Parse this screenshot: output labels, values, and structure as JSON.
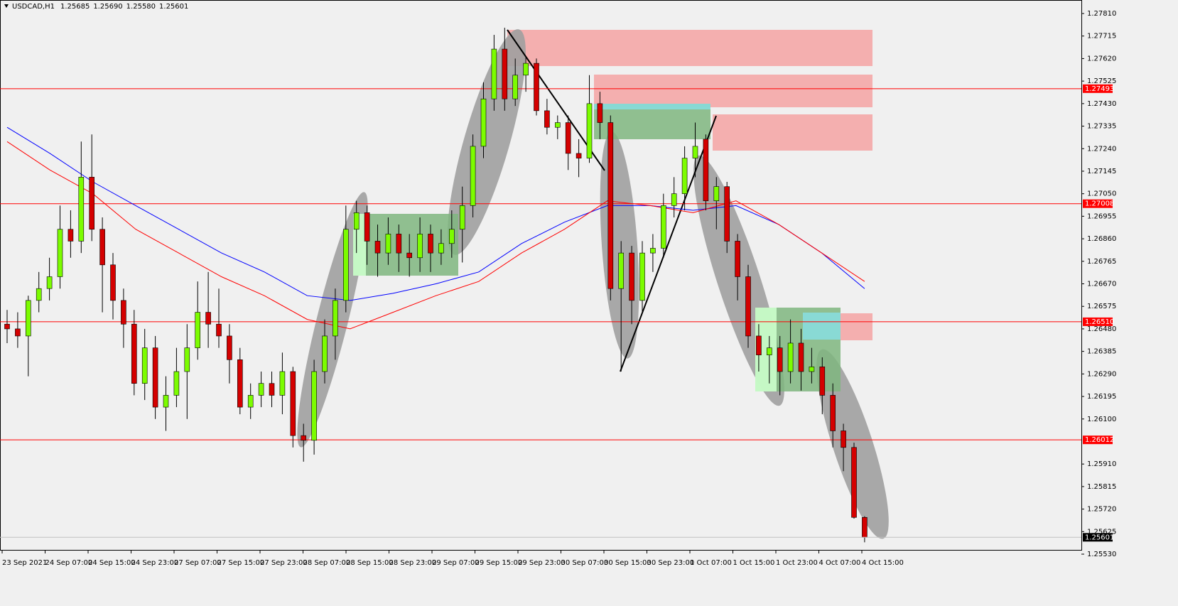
{
  "chart_data": {
    "type": "candlestick",
    "title": "USDCAD,H1",
    "quote": [
      {
        "value": 1.25685,
        "label": "1.25685"
      },
      {
        "value": 1.2569,
        "label": "1.25690"
      },
      {
        "value": 1.2558,
        "label": "1.25580"
      },
      {
        "value": 1.25601,
        "label": "1.25601"
      }
    ],
    "up_color": "#7cfc00",
    "down_color": "#d40000",
    "ylim": [
      1.25545,
      1.27858
    ],
    "yticks": [
      {
        "value": 1.2781,
        "label": "1.27810"
      },
      {
        "value": 1.27715,
        "label": "1.27715"
      },
      {
        "value": 1.2762,
        "label": "1.27620"
      },
      {
        "value": 1.27525,
        "label": "1.27525"
      },
      {
        "value": 1.2743,
        "label": "1.27430"
      },
      {
        "value": 1.27335,
        "label": "1.27335"
      },
      {
        "value": 1.2724,
        "label": "1.27240"
      },
      {
        "value": 1.27145,
        "label": "1.27145"
      },
      {
        "value": 1.2705,
        "label": "1.27050"
      },
      {
        "value": 1.26955,
        "label": "1.26955"
      },
      {
        "value": 1.2686,
        "label": "1.26860"
      },
      {
        "value": 1.26765,
        "label": "1.26765"
      },
      {
        "value": 1.2667,
        "label": "1.26670"
      },
      {
        "value": 1.26575,
        "label": "1.26575"
      },
      {
        "value": 1.2648,
        "label": "1.26480"
      },
      {
        "value": 1.26385,
        "label": "1.26385"
      },
      {
        "value": 1.2629,
        "label": "1.26290"
      },
      {
        "value": 1.26195,
        "label": "1.26195"
      },
      {
        "value": 1.261,
        "label": "1.26100"
      },
      {
        "value": 1.2591,
        "label": "1.25910"
      },
      {
        "value": 1.25815,
        "label": "1.25815"
      },
      {
        "value": 1.2572,
        "label": "1.25720"
      },
      {
        "value": 1.25625,
        "label": "1.25625"
      },
      {
        "value": 1.2553,
        "label": "1.25530"
      }
    ],
    "hlines": [
      {
        "value": 1.27493,
        "label": "1.27493"
      },
      {
        "value": 1.27008,
        "label": "1.27008"
      },
      {
        "value": 1.2651,
        "label": "1.26510"
      },
      {
        "value": 1.26012,
        "label": "1.26012"
      }
    ],
    "hline_color": "#ff0000",
    "time_labels": [
      "23 Sep 2021",
      "24 Sep 07:00",
      "24 Sep 15:00",
      "24 Sep 23:00",
      "27 Sep 07:00",
      "27 Sep 15:00",
      "27 Sep 23:00",
      "28 Sep 07:00",
      "28 Sep 15:00",
      "28 Sep 23:00",
      "29 Sep 07:00",
      "29 Sep 15:00",
      "29 Sep 23:00",
      "30 Sep 07:00",
      "30 Sep 15:00",
      "30 Sep 23:00",
      "1 Oct 07:00",
      "1 Oct 15:00",
      "1 Oct 23:00",
      "4 Oct 07:00",
      "4 Oct 15:00"
    ],
    "candles": [
      [
        1.265,
        1.2656,
        1.2642,
        1.2648
      ],
      [
        1.2648,
        1.2655,
        1.264,
        1.2645
      ],
      [
        1.2645,
        1.2662,
        1.2628,
        1.266
      ],
      [
        1.266,
        1.2672,
        1.2655,
        1.2665
      ],
      [
        1.2665,
        1.2678,
        1.266,
        1.267
      ],
      [
        1.267,
        1.27,
        1.2665,
        1.269
      ],
      [
        1.269,
        1.2698,
        1.2678,
        1.2685
      ],
      [
        1.2685,
        1.2727,
        1.268,
        1.2712
      ],
      [
        1.2712,
        1.273,
        1.2685,
        1.269
      ],
      [
        1.269,
        1.2695,
        1.2655,
        1.2675
      ],
      [
        1.2675,
        1.268,
        1.2652,
        1.266
      ],
      [
        1.266,
        1.2665,
        1.264,
        1.265
      ],
      [
        1.265,
        1.2656,
        1.262,
        1.2625
      ],
      [
        1.2625,
        1.2648,
        1.2618,
        1.264
      ],
      [
        1.264,
        1.2645,
        1.261,
        1.2615
      ],
      [
        1.2615,
        1.2628,
        1.2605,
        1.262
      ],
      [
        1.262,
        1.264,
        1.2615,
        1.263
      ],
      [
        1.263,
        1.265,
        1.261,
        1.264
      ],
      [
        1.264,
        1.2668,
        1.2635,
        1.2655
      ],
      [
        1.2655,
        1.2672,
        1.264,
        1.265
      ],
      [
        1.265,
        1.2665,
        1.264,
        1.2645
      ],
      [
        1.2645,
        1.265,
        1.2625,
        1.2635
      ],
      [
        1.2635,
        1.264,
        1.2612,
        1.2615
      ],
      [
        1.2615,
        1.2625,
        1.261,
        1.262
      ],
      [
        1.262,
        1.263,
        1.2615,
        1.2625
      ],
      [
        1.2625,
        1.263,
        1.2615,
        1.262
      ],
      [
        1.262,
        1.2638,
        1.2612,
        1.263
      ],
      [
        1.263,
        1.2632,
        1.2598,
        1.2603
      ],
      [
        1.2603,
        1.2608,
        1.2592,
        1.2601
      ],
      [
        1.2601,
        1.2635,
        1.2595,
        1.263
      ],
      [
        1.263,
        1.2652,
        1.2625,
        1.2645
      ],
      [
        1.2645,
        1.2665,
        1.2635,
        1.266
      ],
      [
        1.266,
        1.27,
        1.2655,
        1.269
      ],
      [
        1.269,
        1.2702,
        1.268,
        1.2697
      ],
      [
        1.2697,
        1.27,
        1.2675,
        1.2685
      ],
      [
        1.2685,
        1.2692,
        1.267,
        1.268
      ],
      [
        1.268,
        1.2695,
        1.2675,
        1.2688
      ],
      [
        1.2688,
        1.2692,
        1.2672,
        1.268
      ],
      [
        1.268,
        1.2688,
        1.267,
        1.2678
      ],
      [
        1.2678,
        1.2695,
        1.2672,
        1.2688
      ],
      [
        1.2688,
        1.2692,
        1.2672,
        1.268
      ],
      [
        1.268,
        1.269,
        1.2675,
        1.2684
      ],
      [
        1.2684,
        1.2698,
        1.2678,
        1.269
      ],
      [
        1.269,
        1.2708,
        1.2676,
        1.27
      ],
      [
        1.27,
        1.273,
        1.2695,
        1.2725
      ],
      [
        1.2725,
        1.2752,
        1.272,
        1.2745
      ],
      [
        1.2745,
        1.2772,
        1.274,
        1.2766
      ],
      [
        1.2766,
        1.2775,
        1.274,
        1.2745
      ],
      [
        1.2745,
        1.2762,
        1.2742,
        1.2755
      ],
      [
        1.2755,
        1.2763,
        1.2748,
        1.276
      ],
      [
        1.276,
        1.2762,
        1.2738,
        1.274
      ],
      [
        1.274,
        1.2745,
        1.273,
        1.2733
      ],
      [
        1.2733,
        1.2738,
        1.2728,
        1.2735
      ],
      [
        1.2735,
        1.2738,
        1.2715,
        1.2722
      ],
      [
        1.2722,
        1.2728,
        1.2712,
        1.272
      ],
      [
        1.272,
        1.2755,
        1.2718,
        1.2743
      ],
      [
        1.2743,
        1.2748,
        1.2728,
        1.2735
      ],
      [
        1.2735,
        1.2738,
        1.266,
        1.2665
      ],
      [
        1.2665,
        1.2685,
        1.263,
        1.268
      ],
      [
        1.268,
        1.2683,
        1.265,
        1.266
      ],
      [
        1.266,
        1.2685,
        1.2655,
        1.268
      ],
      [
        1.268,
        1.2688,
        1.2672,
        1.2682
      ],
      [
        1.2682,
        1.2705,
        1.2678,
        1.27
      ],
      [
        1.27,
        1.2712,
        1.2695,
        1.2705
      ],
      [
        1.2705,
        1.2725,
        1.2698,
        1.272
      ],
      [
        1.272,
        1.2735,
        1.2712,
        1.2725
      ],
      [
        1.2728,
        1.273,
        1.2698,
        1.2702
      ],
      [
        1.2702,
        1.2712,
        1.269,
        1.2708
      ],
      [
        1.2708,
        1.271,
        1.268,
        1.2685
      ],
      [
        1.2685,
        1.2688,
        1.266,
        1.267
      ],
      [
        1.267,
        1.2675,
        1.264,
        1.2645
      ],
      [
        1.2645,
        1.265,
        1.263,
        1.2637
      ],
      [
        1.2637,
        1.2645,
        1.2625,
        1.264
      ],
      [
        1.264,
        1.2645,
        1.262,
        1.263
      ],
      [
        1.263,
        1.2652,
        1.2625,
        1.2642
      ],
      [
        1.2642,
        1.2648,
        1.2622,
        1.263
      ],
      [
        1.263,
        1.264,
        1.2625,
        1.2632
      ],
      [
        1.2632,
        1.2636,
        1.2612,
        1.262
      ],
      [
        1.262,
        1.2625,
        1.2598,
        1.2605
      ],
      [
        1.2605,
        1.2608,
        1.2588,
        1.2598
      ],
      [
        1.2598,
        1.26,
        1.2568,
        1.25685
      ],
      [
        1.25685,
        1.2569,
        1.2558,
        1.25601
      ]
    ],
    "series": [
      {
        "color": "#0000ff",
        "values": [
          1.2733,
          1.2722,
          1.271,
          1.27,
          1.269,
          1.268,
          1.2672,
          1.2662,
          1.266,
          1.2663,
          1.2667,
          1.2672,
          1.2684,
          1.2693,
          1.27,
          1.27,
          1.2698,
          1.27,
          1.2692,
          1.268,
          1.2665
        ]
      },
      {
        "color": "#ff0000",
        "values": [
          1.2727,
          1.2715,
          1.2705,
          1.269,
          1.268,
          1.267,
          1.2662,
          1.2652,
          1.2648,
          1.2655,
          1.2662,
          1.2668,
          1.268,
          1.269,
          1.2702,
          1.27,
          1.2697,
          1.2702,
          1.2692,
          1.268,
          1.2668
        ]
      }
    ],
    "last_price": {
      "value": 1.25601,
      "label": "1.25601"
    }
  }
}
